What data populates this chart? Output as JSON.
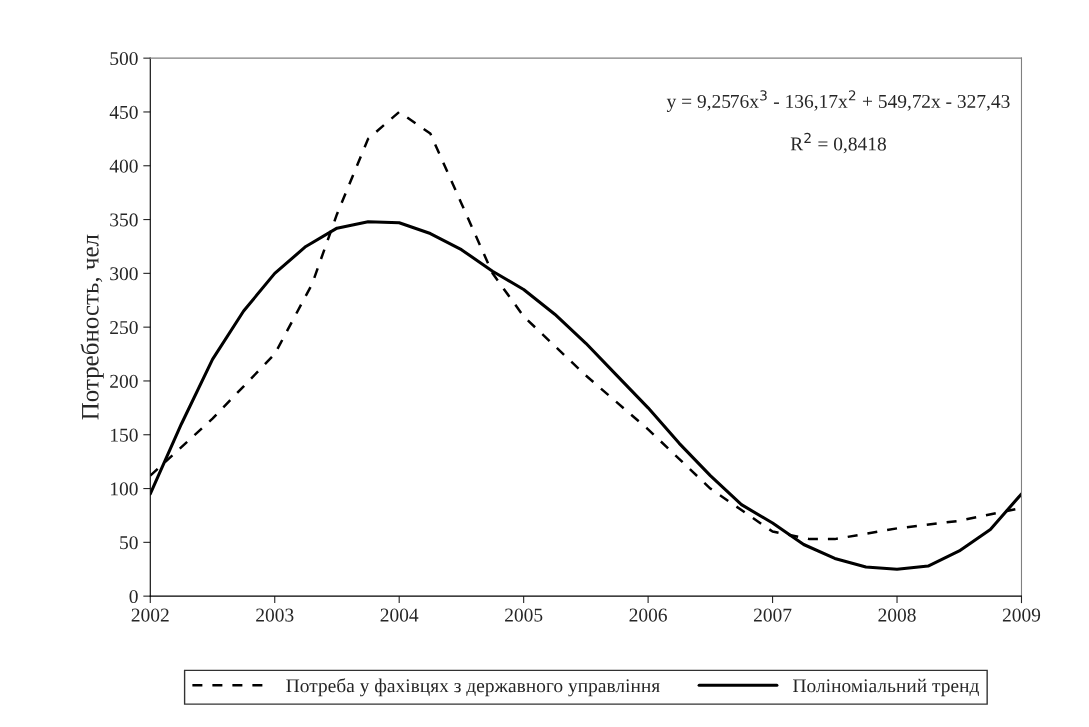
{
  "chart_data": {
    "type": "line",
    "ylabel": "Потребность, чел",
    "xlim": [
      2002,
      2009
    ],
    "xticks": [
      2002,
      2003,
      2004,
      2005,
      2006,
      2007,
      2008,
      2009
    ],
    "ylim": [
      0,
      500
    ],
    "yticks": [
      0,
      50,
      100,
      150,
      200,
      250,
      300,
      350,
      400,
      450,
      500
    ],
    "grid": false,
    "legend": "bottom",
    "marker": "none",
    "annotations": [
      "y = 9,2576x$^{3}$ - 136,17x$^{2}$ + 549,72x - 327,43",
      "R$^{2}$ = 0,8418"
    ],
    "series": [
      {
        "name": "Потреба у фахівцях з державного управління",
        "color": "#000000",
        "line_style": "dashed",
        "x": [
          2002,
          2002.5,
          2003,
          2003.3,
          2003.5,
          2003.75,
          2004,
          2004.25,
          2004.5,
          2004.75,
          2005,
          2005.5,
          2006,
          2006.5,
          2007,
          2007.3,
          2007.5,
          2008,
          2008.5,
          2009
        ],
        "values": [
          112,
          165,
          225,
          290,
          355,
          425,
          450,
          430,
          365,
          300,
          260,
          205,
          155,
          100,
          60,
          53,
          53,
          63,
          70,
          82
        ]
      },
      {
        "name": "Поліноміальний тренд",
        "color": "#000000",
        "line_style": "solid",
        "x": [
          2002,
          2002.25,
          2002.5,
          2002.75,
          2003,
          2003.25,
          2003.5,
          2003.75,
          2004,
          2004.25,
          2004.5,
          2004.75,
          2005,
          2005.25,
          2005.5,
          2005.75,
          2006,
          2006.25,
          2006.5,
          2006.75,
          2007,
          2007.25,
          2007.5,
          2007.75,
          2008,
          2008.25,
          2008.5,
          2008.75,
          2009
        ],
        "values": [
          95,
          160,
          220,
          265,
          300,
          325,
          342,
          348,
          347,
          337,
          322,
          302,
          285,
          262,
          235,
          205,
          175,
          142,
          112,
          85,
          68,
          48,
          35,
          27,
          25,
          28,
          42,
          62,
          95
        ]
      }
    ]
  }
}
